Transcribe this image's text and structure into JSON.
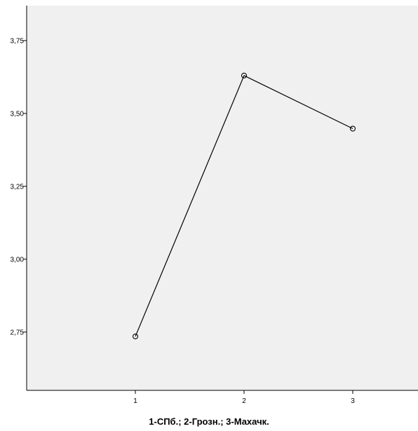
{
  "chart_data": {
    "type": "line",
    "title": "",
    "xlabel": "1-СПб.; 2-Грозн.; 3-Махачк.",
    "ylabel": "",
    "x": [
      "1",
      "2",
      "3"
    ],
    "series": [
      {
        "values": [
          2.735,
          3.63,
          3.448
        ]
      }
    ],
    "ylim": [
      2.55,
      3.87
    ],
    "xlim": [
      0,
      3.6
    ],
    "y_ticks": [
      2.75,
      3.0,
      3.25,
      3.5,
      3.75
    ],
    "y_tick_labels": [
      "2,75",
      "3,00",
      "3,25",
      "3,50",
      "3,75"
    ],
    "x_ticks": [
      1,
      2,
      3
    ],
    "x_tick_labels": [
      "1",
      "2",
      "3"
    ],
    "grid": false,
    "legend": "none",
    "colors": {
      "plot_background": "#f0f0f0",
      "line": "#000000",
      "marker": "#000000",
      "axis": "#000000"
    }
  }
}
